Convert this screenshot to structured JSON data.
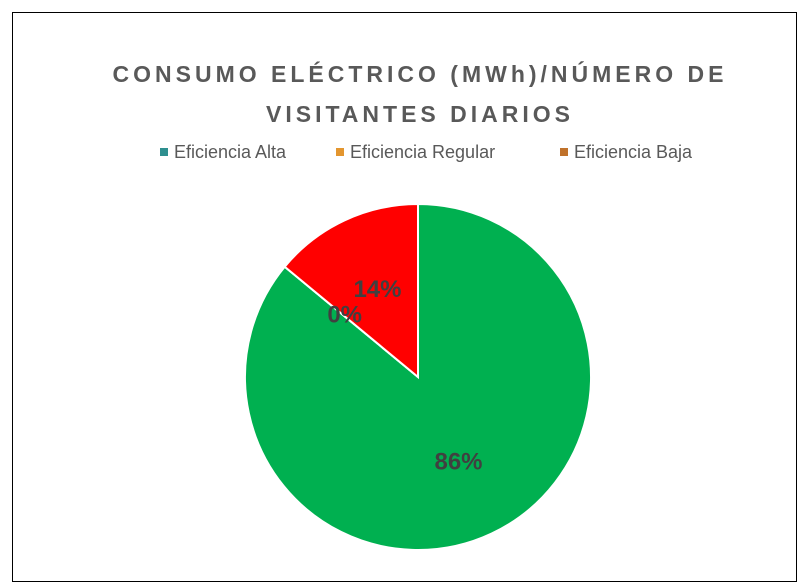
{
  "chart_data": {
    "type": "pie",
    "title": "CONSUMO ELÉCTRICO (MWh)/NÚMERO DE VISITANTES DIARIOS",
    "categories": [
      "Eficiencia Alta",
      "Eficiencia Regular",
      "Eficiencia Baja"
    ],
    "values": [
      86,
      0,
      14
    ],
    "value_labels": [
      "86%",
      "0%",
      "14%"
    ],
    "colors": [
      "#00b050",
      "#ffc000",
      "#ff0000"
    ],
    "legend_colors": [
      "#2e8f8f",
      "#e3962f",
      "#c0722b"
    ]
  }
}
